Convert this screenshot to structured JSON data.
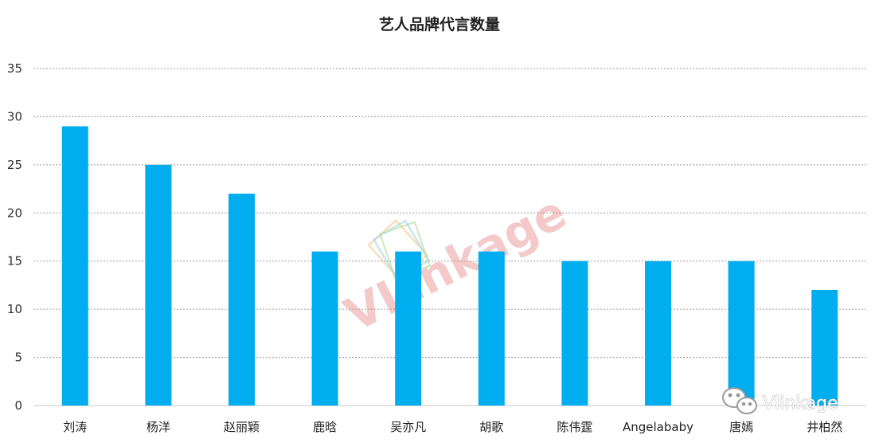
{
  "chart_data": {
    "type": "bar",
    "title": "艺人品牌代言数量",
    "categories": [
      "刘涛",
      "杨洋",
      "赵丽颖",
      "鹿晗",
      "吴亦凡",
      "胡歌",
      "陈伟霆",
      "Angelababy",
      "唐嫣",
      "井柏然"
    ],
    "values": [
      29,
      25,
      22,
      16,
      16,
      16,
      15,
      15,
      15,
      12
    ],
    "xlabel": "",
    "ylabel": "",
    "ylim": [
      0,
      35
    ],
    "yticks": [
      0,
      5,
      10,
      15,
      20,
      25,
      30,
      35
    ],
    "grid": true,
    "bar_color": "#00aeef"
  },
  "watermark": {
    "text": "VLinkage",
    "color": "#e88a8a"
  },
  "brand_mark": {
    "text": "Vlinkage",
    "icon": "wechat-icon"
  }
}
